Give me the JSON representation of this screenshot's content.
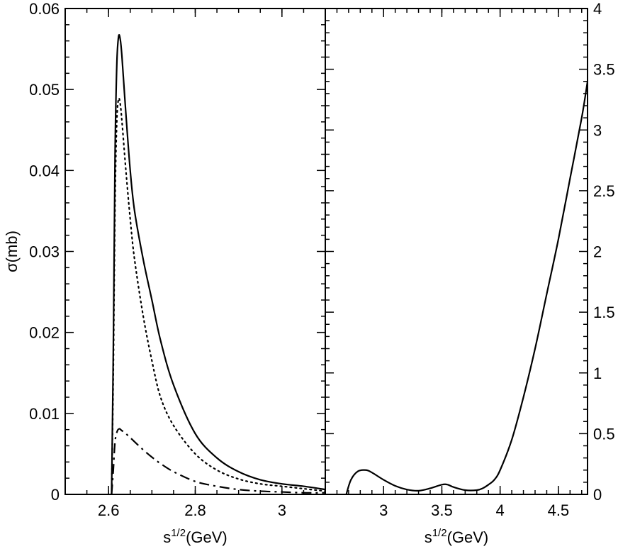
{
  "chart_data": [
    {
      "type": "line",
      "title": "",
      "xlabel": {
        "base": "s",
        "sup": "1/2",
        "rest": "(GeV)"
      },
      "ylabel": "σ(mb)",
      "xlim": [
        2.5,
        3.1
      ],
      "ylim": [
        0,
        0.06
      ],
      "x_ticks": [
        2.6,
        2.8,
        3.0
      ],
      "x_tick_labels": [
        "2.6",
        "2.8",
        "3"
      ],
      "y_ticks": [
        0,
        0.01,
        0.02,
        0.03,
        0.04,
        0.05,
        0.06
      ],
      "y_tick_labels": [
        "0",
        "0.01",
        "0.02",
        "0.03",
        "0.04",
        "0.05",
        "0.06"
      ],
      "y_axis_side": "left",
      "grid": false,
      "legend": "none",
      "series": [
        {
          "style": "solid",
          "x": [
            2.607,
            2.611,
            2.615,
            2.619,
            2.623,
            2.627,
            2.631,
            2.64,
            2.65,
            2.66,
            2.68,
            2.7,
            2.72,
            2.75,
            2.8,
            2.85,
            2.9,
            2.95,
            3.0,
            3.05,
            3.1
          ],
          "y": [
            0.0,
            0.018,
            0.042,
            0.053,
            0.0565,
            0.0562,
            0.054,
            0.047,
            0.04,
            0.035,
            0.029,
            0.024,
            0.019,
            0.0135,
            0.0075,
            0.0045,
            0.0028,
            0.0018,
            0.0013,
            0.001,
            0.0006
          ]
        },
        {
          "style": "dotted",
          "x": [
            2.607,
            2.611,
            2.615,
            2.619,
            2.623,
            2.627,
            2.631,
            2.64,
            2.65,
            2.66,
            2.68,
            2.7,
            2.72,
            2.75,
            2.8,
            2.85,
            2.9,
            2.95,
            3.0,
            3.05,
            3.1
          ],
          "y": [
            0.0,
            0.015,
            0.036,
            0.046,
            0.0488,
            0.0482,
            0.046,
            0.04,
            0.034,
            0.029,
            0.022,
            0.0165,
            0.012,
            0.0085,
            0.005,
            0.003,
            0.0019,
            0.0013,
            0.001,
            0.0007,
            0.0004
          ]
        },
        {
          "style": "dash-dot",
          "x": [
            2.607,
            2.611,
            2.615,
            2.62,
            2.625,
            2.63,
            2.64,
            2.66,
            2.68,
            2.7,
            2.72,
            2.75,
            2.8,
            2.85,
            2.9,
            2.95,
            3.0,
            3.05,
            3.1
          ],
          "y": [
            0.0,
            0.003,
            0.0065,
            0.0078,
            0.0081,
            0.0079,
            0.0075,
            0.0065,
            0.0055,
            0.0046,
            0.0038,
            0.0028,
            0.0016,
            0.001,
            0.0006,
            0.0004,
            0.0003,
            0.0002,
            0.0002
          ]
        }
      ]
    },
    {
      "type": "line",
      "title": "",
      "xlabel": {
        "base": "s",
        "sup": "1/2",
        "rest": "(GeV)"
      },
      "ylabel": "",
      "xlim": [
        2.5,
        4.75
      ],
      "ylim": [
        0,
        4
      ],
      "x_ticks": [
        3.0,
        3.5,
        4.0,
        4.5
      ],
      "x_tick_labels": [
        "3",
        "3.5",
        "4",
        "4.5"
      ],
      "y_ticks": [
        0,
        0.5,
        1,
        1.5,
        2,
        2.5,
        3,
        3.5,
        4
      ],
      "y_tick_labels": [
        "0",
        "0.5",
        "1",
        "1.5",
        "2",
        "2.5",
        "3",
        "3.5",
        "4"
      ],
      "y_axis_side": "right",
      "grid": false,
      "legend": "none",
      "series": [
        {
          "style": "solid",
          "x": [
            2.68,
            2.72,
            2.78,
            2.85,
            2.9,
            3.0,
            3.1,
            3.2,
            3.3,
            3.4,
            3.5,
            3.55,
            3.6,
            3.7,
            3.8,
            3.85,
            3.9,
            3.95,
            4.0,
            4.1,
            4.2,
            4.3,
            4.4,
            4.5,
            4.6,
            4.7,
            4.75
          ],
          "y": [
            0.0,
            0.12,
            0.19,
            0.2,
            0.18,
            0.12,
            0.07,
            0.04,
            0.03,
            0.05,
            0.08,
            0.08,
            0.06,
            0.035,
            0.035,
            0.05,
            0.08,
            0.12,
            0.2,
            0.45,
            0.8,
            1.2,
            1.65,
            2.1,
            2.6,
            3.1,
            3.4
          ]
        }
      ]
    }
  ]
}
